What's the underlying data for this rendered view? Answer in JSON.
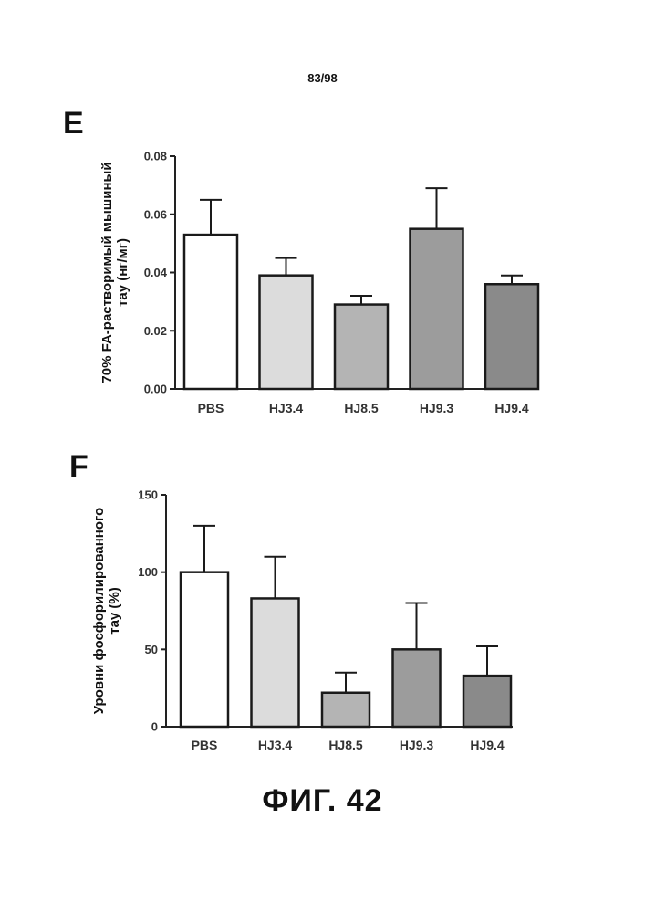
{
  "page_number": "83/98",
  "figure_caption": "ФИГ. 42",
  "colors": {
    "axis": "#222222",
    "bar_outline": "#1a1a1a",
    "bar_fills": [
      "#ffffff",
      "#dcdcdc",
      "#b4b4b4",
      "#9c9c9c",
      "#8a8a8a"
    ]
  },
  "chart_data": [
    {
      "id": "E",
      "type": "bar",
      "panel_label": "E",
      "categories": [
        "PBS",
        "HJ3.4",
        "HJ8.5",
        "HJ9.3",
        "HJ9.4"
      ],
      "values": [
        0.053,
        0.039,
        0.029,
        0.055,
        0.036
      ],
      "errors": [
        0.012,
        0.006,
        0.003,
        0.014,
        0.003
      ],
      "ylabel": [
        "70% FA-растворимый мышиный",
        "тау (нг/мг)"
      ],
      "xlabel": "",
      "ylim": [
        0,
        0.08
      ],
      "yticks": [
        0,
        0.02,
        0.04,
        0.06,
        0.08
      ],
      "ytick_labels": [
        "0.00",
        "0.02",
        "0.04",
        "0.06",
        "0.08"
      ],
      "grid": false
    },
    {
      "id": "F",
      "type": "bar",
      "panel_label": "F",
      "categories": [
        "PBS",
        "HJ3.4",
        "HJ8.5",
        "HJ9.3",
        "HJ9.4"
      ],
      "values": [
        100,
        83,
        22,
        50,
        33
      ],
      "errors": [
        30,
        27,
        13,
        30,
        19
      ],
      "ylabel": [
        "Уровни фосфорилированного",
        "тау (%)"
      ],
      "xlabel": "",
      "ylim": [
        0,
        150
      ],
      "yticks": [
        0,
        50,
        100,
        150
      ],
      "ytick_labels": [
        "0",
        "50",
        "100",
        "150"
      ],
      "grid": false
    }
  ]
}
